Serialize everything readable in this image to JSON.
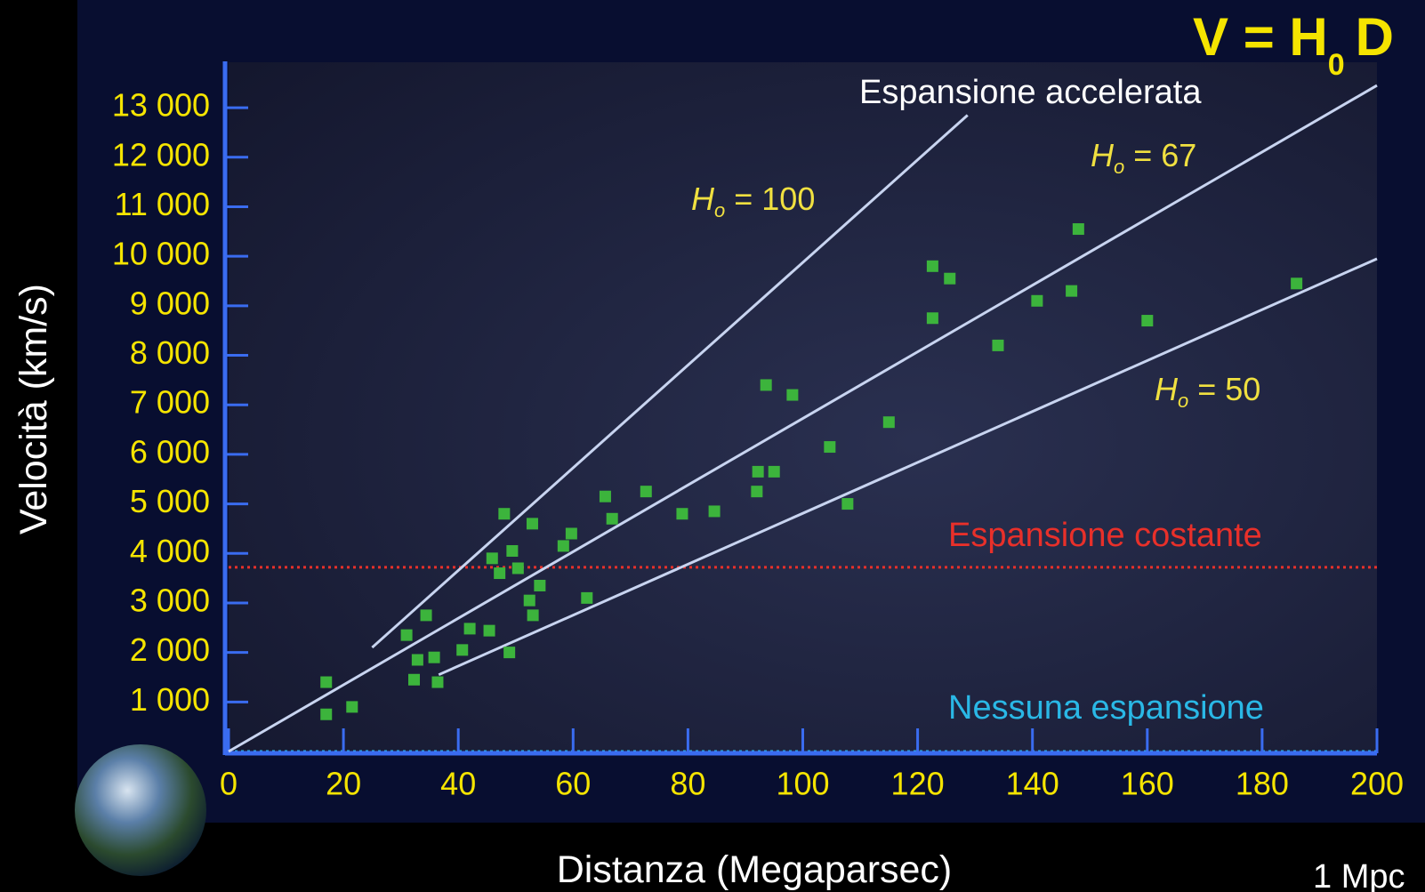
{
  "chart_data": {
    "type": "scatter",
    "formula": {
      "main": "V = H",
      "subscript": "0",
      "tail": "D"
    },
    "footnote": "1 Mpc",
    "x_label": "Distanza (Megaparsec)",
    "y_label": "Velocità (km/s)",
    "xlim": [
      0,
      200
    ],
    "ylim": [
      0,
      13900
    ],
    "xticks": [
      0,
      20,
      40,
      60,
      80,
      100,
      120,
      140,
      160,
      180,
      200
    ],
    "yticks": [
      {
        "value": 1000,
        "label": "1 000"
      },
      {
        "value": 2000,
        "label": "2 000"
      },
      {
        "value": 3000,
        "label": "3 000"
      },
      {
        "value": 4000,
        "label": "4 000"
      },
      {
        "value": 5000,
        "label": "5 000"
      },
      {
        "value": 6000,
        "label": "6 000"
      },
      {
        "value": 7000,
        "label": "7 000"
      },
      {
        "value": 8000,
        "label": "8 000"
      },
      {
        "value": 9000,
        "label": "9 000"
      },
      {
        "value": 10000,
        "label": "10 000"
      },
      {
        "value": 11000,
        "label": "11 000"
      },
      {
        "value": 12000,
        "label": "12 000"
      },
      {
        "value": 13000,
        "label": "13 000"
      }
    ],
    "point_color": "#3cb43c",
    "x": [
      17,
      17,
      21.5,
      31,
      34.4,
      32.9,
      32.3,
      35.8,
      36.4,
      40.7,
      42,
      45.4,
      48.9,
      45.9,
      47.2,
      48,
      49.4,
      50.4,
      52.4,
      53,
      54.2,
      52.9,
      58.3,
      59.7,
      62.4,
      65.6,
      66.8,
      72.7,
      79,
      84.6,
      92,
      92.2,
      95,
      93.6,
      98.2,
      104.7,
      107.8,
      115,
      122.6,
      122.6,
      125.6,
      134,
      140.8,
      146.8,
      148,
      160,
      186
    ],
    "values": [
      750,
      1400,
      900,
      2350,
      2750,
      1850,
      1450,
      1900,
      1400,
      2050,
      2480,
      2440,
      2000,
      3900,
      3600,
      4800,
      4050,
      3700,
      3050,
      2750,
      3350,
      4600,
      4150,
      4400,
      3100,
      5150,
      4700,
      5250,
      4800,
      4850,
      5250,
      5650,
      5650,
      7400,
      7200,
      6150,
      5000,
      6650,
      9800,
      8750,
      9550,
      8200,
      9100,
      9300,
      10550,
      8700,
      9450
    ],
    "lines": [
      {
        "symbol": "H",
        "subscript": "o",
        "value_text": "= 100",
        "color": "#c8d4f0",
        "x": [
          25,
          128.7
        ],
        "y": [
          2100,
          12850
        ]
      },
      {
        "symbol": "H",
        "subscript": "o",
        "value_text": "= 67",
        "color": "#c8d4f0",
        "x": [
          0,
          200
        ],
        "y": [
          0,
          13450
        ]
      },
      {
        "symbol": "H",
        "subscript": "o",
        "value_text": "= 50",
        "color": "#c8d4f0",
        "x": [
          36.6,
          200
        ],
        "y": [
          1550,
          9950
        ]
      }
    ],
    "line_label_color": "#f0e040",
    "accel_label": "Espansione accelerata",
    "hlines": [
      {
        "y": 3720,
        "color": "#e8302a",
        "label": "Espansione costante"
      },
      {
        "y": 0,
        "color": "#2ab8e6",
        "label": "Nessuna espansione"
      }
    ]
  }
}
